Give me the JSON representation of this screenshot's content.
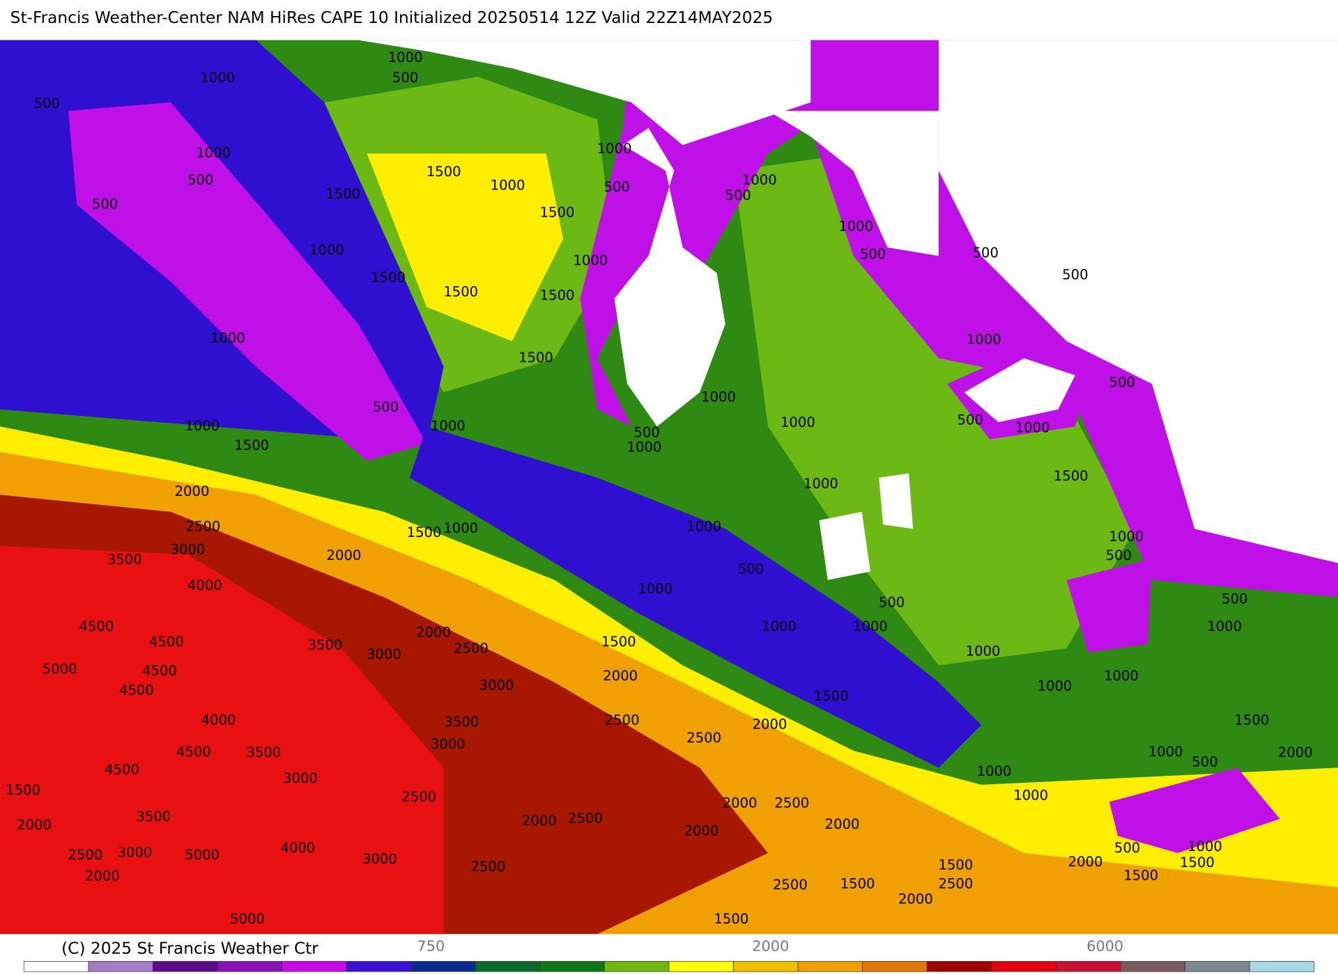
{
  "header": {
    "title": "St-Francis Weather-Center NAM HiRes CAPE  10 Initialized 20250514 12Z Valid 22Z14MAY2025"
  },
  "map": {
    "contour_labels": [
      1000,
      500,
      1000,
      500,
      1000,
      500,
      500,
      1500,
      1000,
      1500,
      1000,
      1000,
      500,
      1500,
      1000,
      1500,
      1500,
      1500,
      1000,
      1500,
      500,
      1000,
      1000,
      1500,
      500,
      1000,
      2000,
      2500,
      3000,
      3500,
      4000,
      1500,
      1000,
      2000,
      1000,
      500,
      1000,
      1000,
      500,
      1000,
      500,
      500,
      500,
      1000,
      1000,
      1000,
      500,
      1000,
      500,
      1000,
      1500,
      1000,
      500,
      500,
      1000,
      1000,
      500,
      1000,
      4500,
      4500,
      3500,
      3000,
      2000,
      2500,
      1500,
      2000,
      5000,
      4500,
      4500,
      3000,
      1000,
      1000,
      1000,
      1500,
      4000,
      3500,
      2500,
      3000,
      2500,
      2000,
      1500,
      4500,
      3500,
      1000,
      500,
      2000,
      4500,
      3000,
      1000,
      1500,
      2500,
      1000,
      2000,
      2500,
      2000,
      3500,
      2000,
      2500,
      2000,
      2000,
      2500,
      3000,
      5000,
      4000,
      3000,
      500,
      1000,
      2000,
      2500,
      1500,
      2000,
      1500,
      1500,
      2500,
      2500,
      1500,
      2000,
      5000,
      1500
    ]
  },
  "footer": {
    "copyright": "(C) 2025 St Francis Weather Ctr",
    "colorbar_labels": [
      "750",
      "2000",
      "6000"
    ]
  }
}
